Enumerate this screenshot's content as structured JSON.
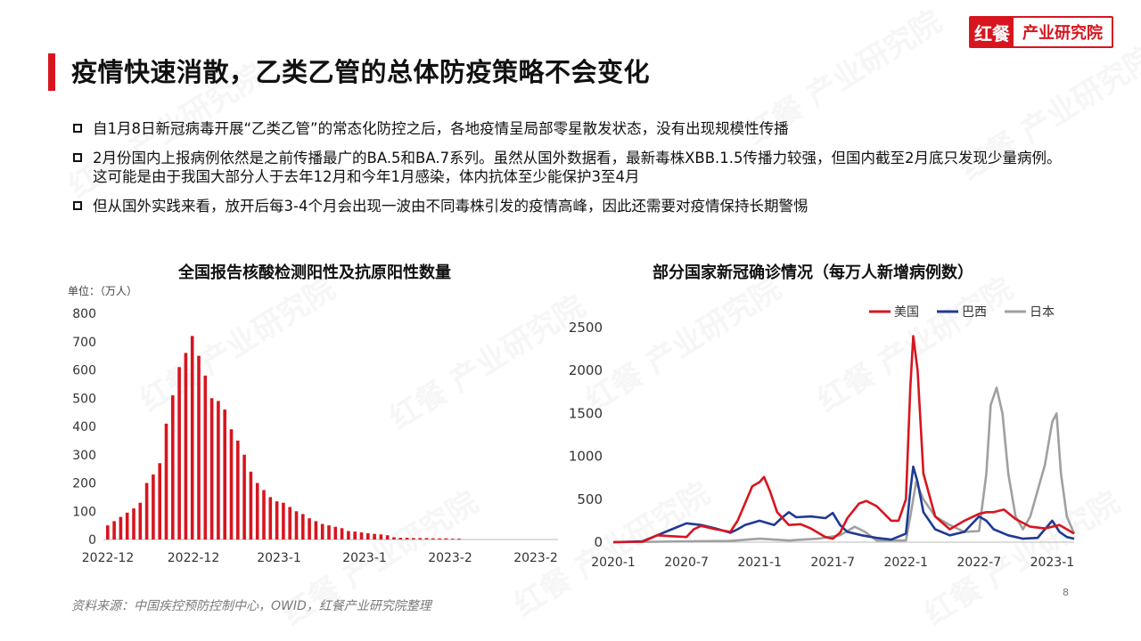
{
  "logo": {
    "mark": "红餐",
    "text": "产业研究院"
  },
  "title": "疫情快速消散，乙类乙管的总体防疫策略不会变化",
  "bullets": [
    "自1月8日新冠病毒开展“乙类乙管”的常态化防控之后，各地疫情呈局部零星散发状态，没有出现规模性传播",
    "2月份国内上报病例依然是之前传播最广的BA.5和BA.7系列。虽然从国外数据看，最新毒株XBB.1.5传播力较强，但国内截至2月底只发现少量病例。这可能是由于我国大部分人于去年12月和今年1月感染，体内抗体至少能保护3至4月",
    "但从国外实践来看，放开后每3-4个月会出现一波由不同毒株引发的疫情高峰，因此还需要对疫情保持长期警惕"
  ],
  "watermark": "红餐 产业研究院",
  "chart_data": [
    {
      "type": "bar",
      "title": "全国报告核酸检测阳性及抗原阳性数量",
      "ylabel": "单位：（万人）",
      "ylim": [
        0,
        800
      ],
      "yticks": [
        0,
        100,
        200,
        300,
        400,
        500,
        600,
        700,
        800
      ],
      "xtick_labels": [
        "2022-12",
        "2022-12",
        "2023-1",
        "2023-1",
        "2023-2",
        "2023-2"
      ],
      "color": "#d7151f",
      "values": [
        50,
        65,
        80,
        95,
        110,
        130,
        200,
        230,
        270,
        410,
        510,
        610,
        660,
        720,
        650,
        580,
        500,
        490,
        460,
        390,
        350,
        300,
        240,
        200,
        175,
        150,
        135,
        130,
        115,
        100,
        90,
        75,
        65,
        55,
        50,
        45,
        40,
        30,
        28,
        25,
        22,
        20,
        18,
        15,
        8,
        6,
        6,
        5,
        5,
        5,
        4,
        4,
        4,
        3,
        3
      ]
    },
    {
      "type": "line",
      "title": "部分国家新冠确诊情况（每万人新增病例数）",
      "ylim": [
        0,
        2500
      ],
      "yticks": [
        0,
        500,
        1000,
        1500,
        2000,
        2500
      ],
      "xtick_labels": [
        "2020-1",
        "2020-7",
        "2021-1",
        "2021-7",
        "2022-1",
        "2022-7",
        "2023-1"
      ],
      "x_range": [
        "2020-01",
        "2023-02"
      ],
      "legend_position": "top-right",
      "series": [
        {
          "name": "美国",
          "color": "#d7151f",
          "points": [
            [
              2020.0,
              0
            ],
            [
              2020.2,
              5
            ],
            [
              2020.3,
              80
            ],
            [
              2020.4,
              70
            ],
            [
              2020.5,
              60
            ],
            [
              2020.55,
              150
            ],
            [
              2020.6,
              190
            ],
            [
              2020.7,
              150
            ],
            [
              2020.8,
              120
            ],
            [
              2020.85,
              250
            ],
            [
              2020.9,
              450
            ],
            [
              2020.95,
              650
            ],
            [
              2021.0,
              700
            ],
            [
              2021.03,
              760
            ],
            [
              2021.07,
              600
            ],
            [
              2021.12,
              350
            ],
            [
              2021.2,
              200
            ],
            [
              2021.28,
              210
            ],
            [
              2021.35,
              160
            ],
            [
              2021.45,
              60
            ],
            [
              2021.5,
              40
            ],
            [
              2021.55,
              110
            ],
            [
              2021.6,
              280
            ],
            [
              2021.68,
              450
            ],
            [
              2021.73,
              480
            ],
            [
              2021.8,
              420
            ],
            [
              2021.9,
              250
            ],
            [
              2021.95,
              250
            ],
            [
              2022.0,
              500
            ],
            [
              2022.03,
              1800
            ],
            [
              2022.05,
              2400
            ],
            [
              2022.08,
              2000
            ],
            [
              2022.12,
              800
            ],
            [
              2022.2,
              300
            ],
            [
              2022.3,
              150
            ],
            [
              2022.4,
              250
            ],
            [
              2022.5,
              330
            ],
            [
              2022.55,
              350
            ],
            [
              2022.6,
              350
            ],
            [
              2022.67,
              380
            ],
            [
              2022.75,
              270
            ],
            [
              2022.85,
              180
            ],
            [
              2022.95,
              160
            ],
            [
              2023.0,
              180
            ],
            [
              2023.05,
              200
            ],
            [
              2023.1,
              150
            ],
            [
              2023.15,
              100
            ]
          ]
        },
        {
          "name": "巴西",
          "color": "#1f3a93",
          "points": [
            [
              2020.0,
              0
            ],
            [
              2020.2,
              10
            ],
            [
              2020.3,
              80
            ],
            [
              2020.4,
              150
            ],
            [
              2020.5,
              220
            ],
            [
              2020.6,
              200
            ],
            [
              2020.7,
              160
            ],
            [
              2020.8,
              110
            ],
            [
              2020.85,
              150
            ],
            [
              2020.9,
              200
            ],
            [
              2021.0,
              250
            ],
            [
              2021.1,
              200
            ],
            [
              2021.15,
              280
            ],
            [
              2021.2,
              350
            ],
            [
              2021.25,
              290
            ],
            [
              2021.35,
              300
            ],
            [
              2021.45,
              280
            ],
            [
              2021.5,
              340
            ],
            [
              2021.55,
              200
            ],
            [
              2021.6,
              120
            ],
            [
              2021.7,
              80
            ],
            [
              2021.8,
              50
            ],
            [
              2021.9,
              30
            ],
            [
              2022.0,
              100
            ],
            [
              2022.03,
              600
            ],
            [
              2022.05,
              880
            ],
            [
              2022.08,
              700
            ],
            [
              2022.12,
              350
            ],
            [
              2022.2,
              150
            ],
            [
              2022.3,
              80
            ],
            [
              2022.4,
              120
            ],
            [
              2022.5,
              300
            ],
            [
              2022.55,
              250
            ],
            [
              2022.6,
              150
            ],
            [
              2022.7,
              80
            ],
            [
              2022.8,
              40
            ],
            [
              2022.9,
              50
            ],
            [
              2022.95,
              150
            ],
            [
              2023.0,
              250
            ],
            [
              2023.05,
              120
            ],
            [
              2023.1,
              60
            ],
            [
              2023.15,
              40
            ]
          ]
        },
        {
          "name": "日本",
          "color": "#a0a0a0",
          "points": [
            [
              2020.0,
              0
            ],
            [
              2020.3,
              5
            ],
            [
              2020.5,
              10
            ],
            [
              2020.8,
              15
            ],
            [
              2021.0,
              40
            ],
            [
              2021.2,
              20
            ],
            [
              2021.4,
              40
            ],
            [
              2021.55,
              80
            ],
            [
              2021.65,
              180
            ],
            [
              2021.72,
              120
            ],
            [
              2021.8,
              20
            ],
            [
              2022.0,
              20
            ],
            [
              2022.03,
              300
            ],
            [
              2022.07,
              700
            ],
            [
              2022.12,
              500
            ],
            [
              2022.2,
              300
            ],
            [
              2022.3,
              200
            ],
            [
              2022.4,
              120
            ],
            [
              2022.5,
              130
            ],
            [
              2022.55,
              800
            ],
            [
              2022.58,
              1600
            ],
            [
              2022.62,
              1800
            ],
            [
              2022.66,
              1500
            ],
            [
              2022.7,
              800
            ],
            [
              2022.75,
              300
            ],
            [
              2022.8,
              150
            ],
            [
              2022.85,
              300
            ],
            [
              2022.9,
              600
            ],
            [
              2022.95,
              900
            ],
            [
              2023.0,
              1400
            ],
            [
              2023.03,
              1500
            ],
            [
              2023.06,
              800
            ],
            [
              2023.1,
              300
            ],
            [
              2023.15,
              100
            ]
          ]
        }
      ]
    }
  ],
  "source": "资料来源：中国疾控预防控制中心，OWID，红餐产业研究院整理",
  "page_number": "8"
}
